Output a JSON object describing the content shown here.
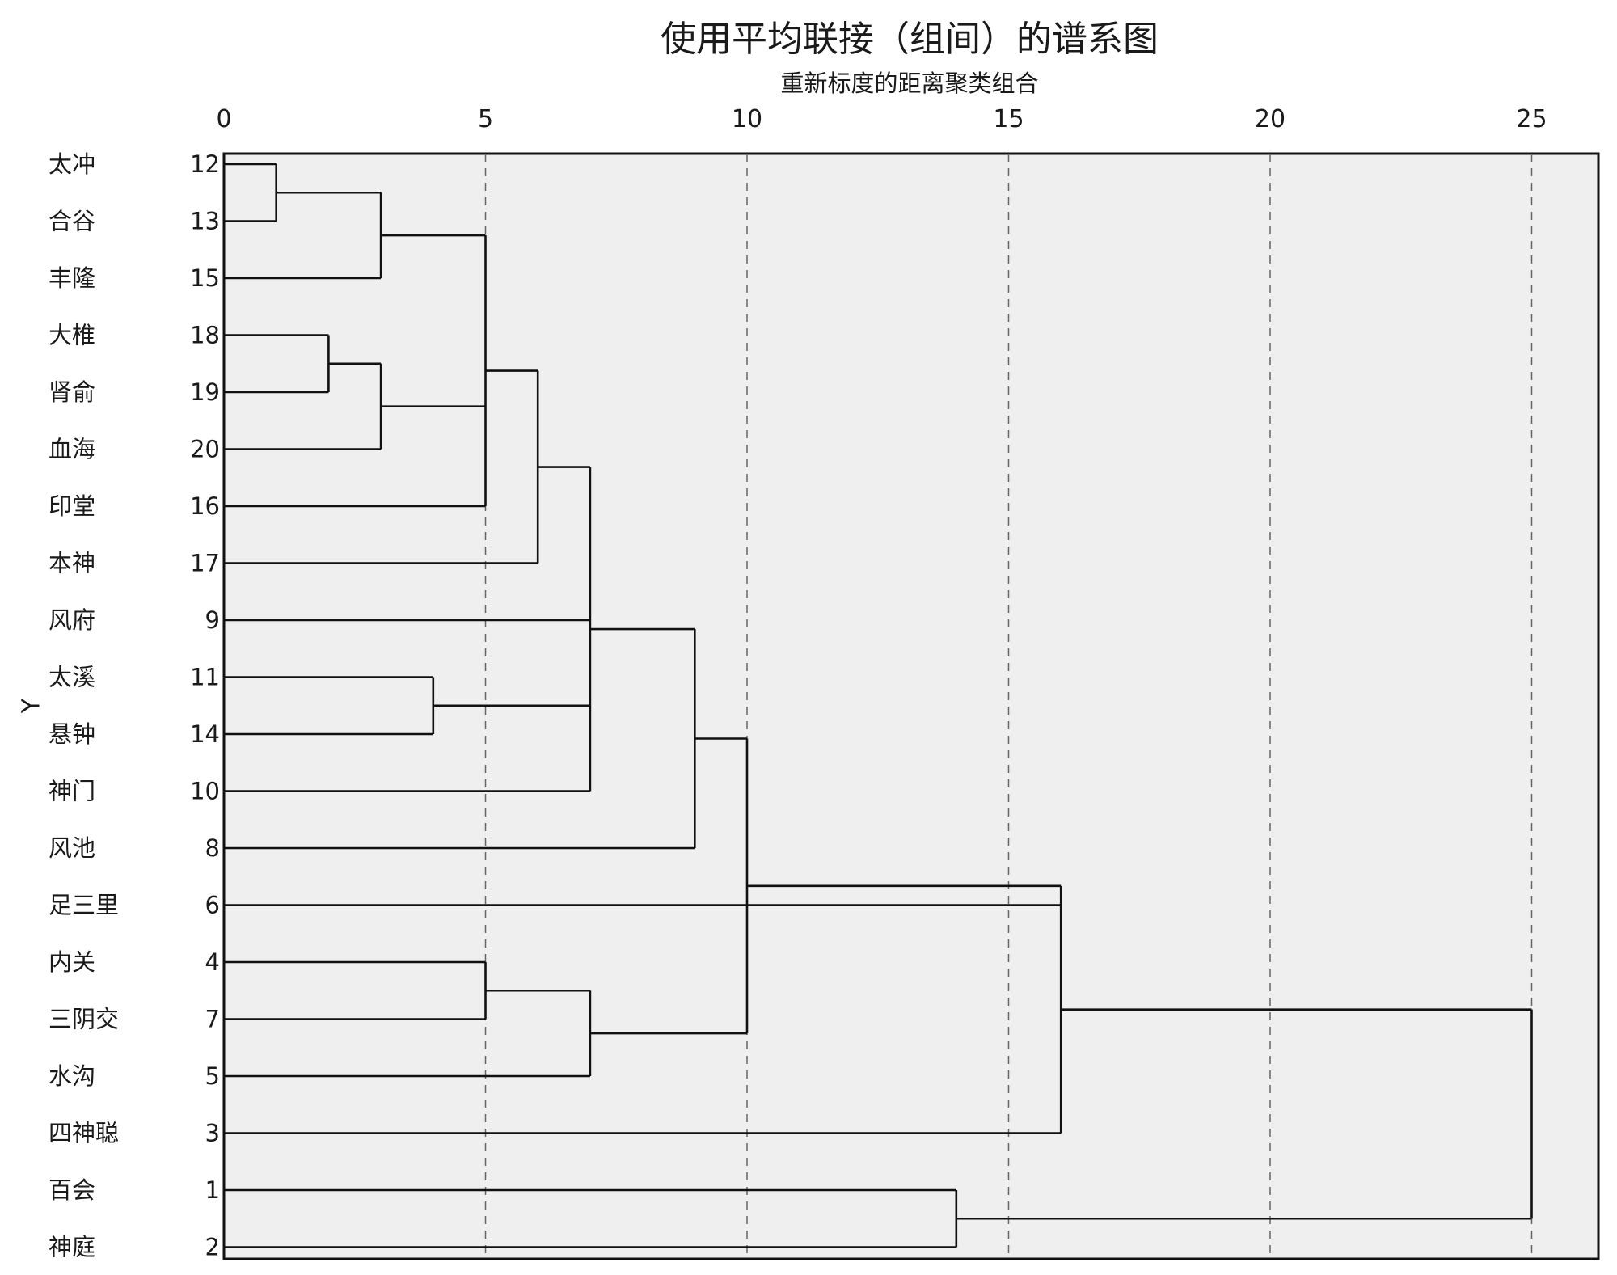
{
  "chart_data": {
    "type": "dendrogram",
    "title": "使用平均联接（组间）的谱系图",
    "subtitle": "重新标度的距离聚类组合",
    "ylabel": "Y",
    "x_ticks": [
      0,
      5,
      10,
      15,
      20,
      25
    ],
    "xlim": [
      0,
      26.3
    ],
    "grid": "vertical dashed at 5, 10, 15, 20, 25",
    "leaves": [
      {
        "name": "太冲",
        "id": "12"
      },
      {
        "name": "合谷",
        "id": "13"
      },
      {
        "name": "丰隆",
        "id": "15"
      },
      {
        "name": "大椎",
        "id": "18"
      },
      {
        "name": "肾俞",
        "id": "19"
      },
      {
        "name": "血海",
        "id": "20"
      },
      {
        "name": "印堂",
        "id": "16"
      },
      {
        "name": "本神",
        "id": "17"
      },
      {
        "name": "风府",
        "id": "9"
      },
      {
        "name": "太溪",
        "id": "11"
      },
      {
        "name": "悬钟",
        "id": "14"
      },
      {
        "name": "神门",
        "id": "10"
      },
      {
        "name": "风池",
        "id": "8"
      },
      {
        "name": "足三里",
        "id": "6"
      },
      {
        "name": "内关",
        "id": "4"
      },
      {
        "name": "三阴交",
        "id": "7"
      },
      {
        "name": "水沟",
        "id": "5"
      },
      {
        "name": "四神聪",
        "id": "3"
      },
      {
        "name": "百会",
        "id": "1"
      },
      {
        "name": "神庭",
        "id": "2"
      }
    ],
    "merges": [
      {
        "members": [
          "12",
          "13"
        ],
        "height": 1
      },
      {
        "members": [
          "18",
          "19"
        ],
        "height": 2
      },
      {
        "members": [
          "12,13",
          "15"
        ],
        "height": 3
      },
      {
        "members": [
          "18,19",
          "20"
        ],
        "height": 3
      },
      {
        "members": [
          "11",
          "14"
        ],
        "height": 4
      },
      {
        "members": [
          "12,13,15",
          "18,19,20",
          "16"
        ],
        "height": 5
      },
      {
        "members": [
          "4",
          "7"
        ],
        "height": 5
      },
      {
        "members": [
          "12-16",
          "17"
        ],
        "height": 6
      },
      {
        "members": [
          "12-17",
          "9",
          "11,14",
          "10"
        ],
        "height": 7
      },
      {
        "members": [
          "4,7",
          "5"
        ],
        "height": 7
      },
      {
        "members": [
          "12-17,9,11,14,10",
          "8"
        ],
        "height": 9
      },
      {
        "members": [
          "12-8",
          "4,7,5"
        ],
        "height": 10
      },
      {
        "members": [
          "1",
          "2"
        ],
        "height": 14
      },
      {
        "members": [
          "12-5",
          "6",
          "3"
        ],
        "height": 16
      },
      {
        "members": [
          "12-3",
          "1,2"
        ],
        "height": 25
      }
    ]
  }
}
